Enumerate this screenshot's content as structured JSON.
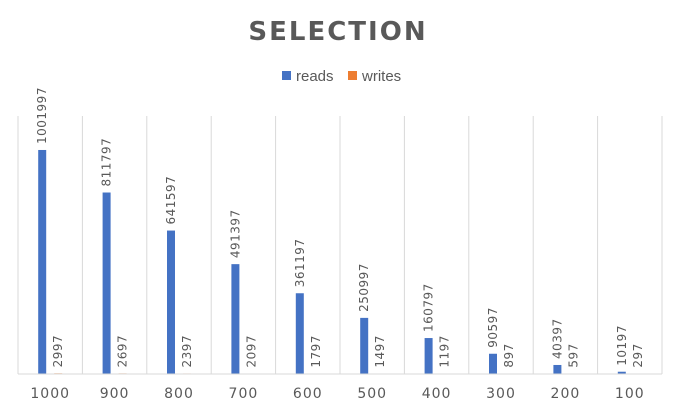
{
  "chart_data": {
    "type": "bar",
    "title": "SELECTION",
    "xlabel": "",
    "ylabel": "",
    "categories": [
      "1000",
      "900",
      "800",
      "700",
      "600",
      "500",
      "400",
      "300",
      "200",
      "100"
    ],
    "series": [
      {
        "name": "reads",
        "color": "#4472C4",
        "values": [
          1001997,
          811797,
          641597,
          491397,
          361197,
          250997,
          160797,
          90597,
          40397,
          10197
        ]
      },
      {
        "name": "writes",
        "color": "#ED7D31",
        "values": [
          2997,
          2697,
          2397,
          2097,
          1797,
          1497,
          1197,
          897,
          597,
          297
        ]
      }
    ],
    "ylim": [
      0,
      1154000
    ],
    "grid": "vertical category gridlines",
    "legend": "top-center",
    "data_labels": true
  }
}
